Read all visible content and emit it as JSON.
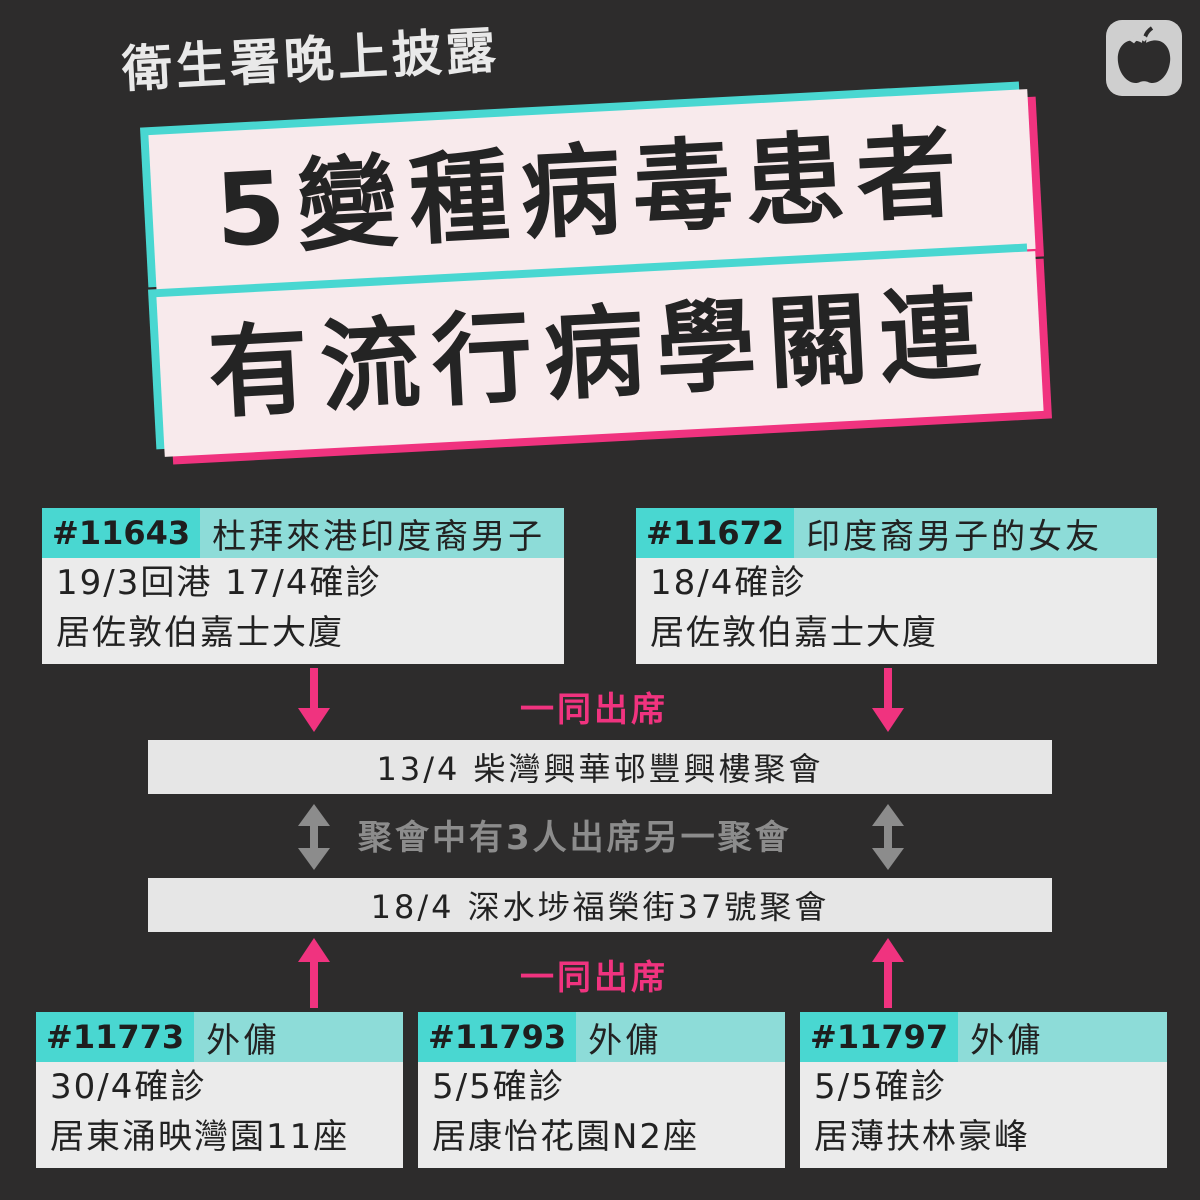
{
  "header": {
    "subtitle": "衛生署晚上披露",
    "headline_line1": "5變種病毒患者",
    "headline_line2": "有流行病學關連"
  },
  "cases_top": [
    {
      "id": "#11643",
      "desc": "杜拜來港印度裔男子",
      "line1": "19/3回港 17/4確診",
      "line2": "居佐敦伯嘉士大廈"
    },
    {
      "id": "#11672",
      "desc": "印度裔男子的女友",
      "line1": "18/4確診",
      "line2": "居佐敦伯嘉士大廈"
    }
  ],
  "label_attend_top": "一同出席",
  "gathering_1": "13/4 柴灣興華邨豐興樓聚會",
  "middle_label": "聚會中有3人出席另一聚會",
  "gathering_2": "18/4 深水埗福榮街37號聚會",
  "label_attend_bottom": "一同出席",
  "cases_bottom": [
    {
      "id": "#11773",
      "desc": "外傭",
      "line1": "30/4確診",
      "line2": "居東涌映灣園11座"
    },
    {
      "id": "#11793",
      "desc": "外傭",
      "line1": "5/5確診",
      "line2": "居康怡花園N2座"
    },
    {
      "id": "#11797",
      "desc": "外傭",
      "line1": "5/5確診",
      "line2": "居薄扶林豪峰"
    }
  ],
  "colors": {
    "background": "#2d2c2c",
    "pink": "#f0337f",
    "cyan": "#49d7d1",
    "gray_arrow": "#8c8c8c"
  },
  "icons": [
    "apple-logo-icon",
    "arrow-down-icon",
    "arrow-up-icon",
    "double-arrow-icon"
  ]
}
